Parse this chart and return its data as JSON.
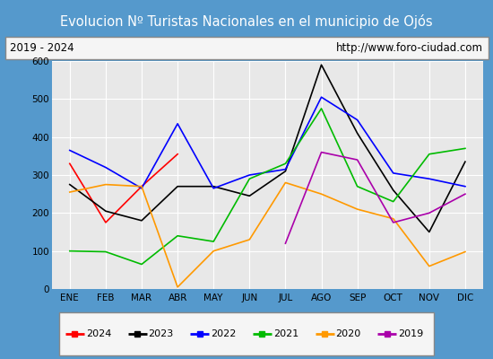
{
  "title": "Evolucion Nº Turistas Nacionales en el municipio de Ojós",
  "subtitle_left": "2019 - 2024",
  "subtitle_right": "http://www.foro-ciudad.com",
  "months": [
    "ENE",
    "FEB",
    "MAR",
    "ABR",
    "MAY",
    "JUN",
    "JUL",
    "AGO",
    "SEP",
    "OCT",
    "NOV",
    "DIC"
  ],
  "series": {
    "2024": {
      "color": "#ff0000",
      "data": [
        330,
        175,
        270,
        355,
        null,
        null,
        null,
        null,
        null,
        null,
        null,
        null
      ]
    },
    "2023": {
      "color": "#000000",
      "data": [
        275,
        205,
        180,
        270,
        270,
        245,
        310,
        590,
        410,
        260,
        150,
        335
      ]
    },
    "2022": {
      "color": "#0000ff",
      "data": [
        365,
        320,
        265,
        435,
        265,
        300,
        315,
        505,
        445,
        305,
        290,
        270
      ]
    },
    "2021": {
      "color": "#00bb00",
      "data": [
        100,
        98,
        65,
        140,
        125,
        290,
        330,
        475,
        270,
        230,
        355,
        370
      ]
    },
    "2020": {
      "color": "#ff9900",
      "data": [
        255,
        275,
        270,
        5,
        100,
        130,
        280,
        250,
        210,
        185,
        60,
        98
      ]
    },
    "2019": {
      "color": "#aa00aa",
      "data": [
        null,
        null,
        null,
        null,
        null,
        null,
        120,
        360,
        340,
        175,
        200,
        250
      ]
    }
  },
  "ylim": [
    0,
    600
  ],
  "yticks": [
    0,
    100,
    200,
    300,
    400,
    500,
    600
  ],
  "bg_header": "#4da6d9",
  "bg_plot": "#e8e8e8",
  "header_text_color": "#ffffff",
  "grid_color": "#ffffff",
  "outer_border_color": "#5599cc",
  "subtitle_border_color": "#888888"
}
